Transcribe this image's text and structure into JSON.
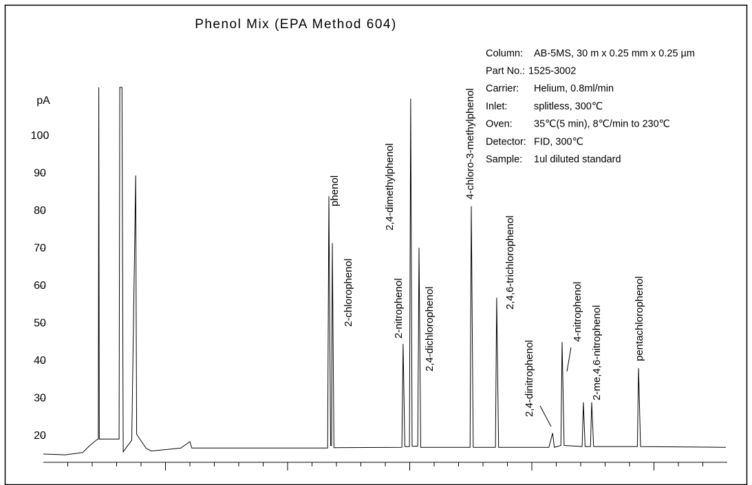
{
  "chart_data": {
    "type": "line",
    "title": "Phenol Mix (EPA Method 604)",
    "ylabel": "pA",
    "xlim": [
      0,
      28
    ],
    "ylim": [
      13,
      113
    ],
    "xticks": [
      1,
      2,
      3,
      4,
      5,
      6,
      7,
      8,
      9,
      10,
      11,
      12,
      13,
      14,
      15,
      16,
      17,
      18,
      19,
      20,
      21,
      22,
      23,
      24,
      25,
      26,
      27
    ],
    "xticks_major": [
      5,
      10,
      15,
      20,
      25
    ],
    "yticks": [
      20,
      30,
      40,
      50,
      60,
      70,
      80,
      90,
      100
    ],
    "x": [
      0.0,
      0.9,
      1.61,
      1.89,
      2.17,
      2.25,
      2.27,
      2.29,
      3.1,
      3.13,
      3.22,
      3.27,
      3.62,
      3.78,
      3.82,
      3.92,
      4.2,
      4.42,
      5.63,
      6.0,
      6.08,
      11.64,
      11.69,
      11.76,
      11.8,
      11.83,
      11.9,
      14.68,
      14.73,
      14.8,
      14.99,
      15.04,
      15.1,
      15.33,
      15.38,
      15.45,
      17.47,
      17.52,
      17.6,
      18.51,
      18.56,
      18.64,
      20.7,
      20.85,
      20.92,
      21.19,
      21.24,
      21.32,
      22.06,
      22.11,
      22.18,
      22.4,
      22.45,
      22.53,
      24.32,
      24.37,
      24.45,
      27.94
    ],
    "series": [
      {
        "color": "#000000",
        "values": [
          15.2,
          15.0,
          15.6,
          17.4,
          18.9,
          19.2,
          113,
          19.2,
          19.2,
          113,
          113,
          15.8,
          18.9,
          89.5,
          20.5,
          19.5,
          16.8,
          16.0,
          16.8,
          18.5,
          16.8,
          16.8,
          84,
          17.5,
          17.5,
          71.5,
          16.9,
          17.0,
          44.6,
          17.2,
          17.2,
          110,
          17.3,
          17.3,
          70.2,
          17.0,
          17.0,
          81.3,
          17.0,
          17.0,
          56.9,
          17.0,
          17.0,
          20.8,
          17.0,
          17.5,
          45.1,
          17.5,
          17.2,
          29.0,
          17.2,
          17.2,
          29.0,
          17.2,
          17.2,
          38.1,
          17.2,
          17.0
        ]
      }
    ],
    "annotations": [
      "phenol",
      "2-chlorophenol",
      "2,4-dimethylphenol",
      "2-nitrophenol",
      "2,4-dichlorophenol",
      "4-chloro-3-methylphenol",
      "2,4,6-trichlorophenol",
      "2,4-dinitrophenol",
      "4-nitrophenol",
      "2-me,4,6-nitrophenol",
      "pentachlorophenol"
    ],
    "info": [
      {
        "label": "Column:",
        "value": "AB-5MS, 30 m x 0.25 mm x 0.25 µm"
      },
      {
        "label": "Part No.:",
        "value": "1525-3002"
      },
      {
        "label": "Carrier:",
        "value": "Helium, 0.8ml/min"
      },
      {
        "label": "Inlet:",
        "value": "splitless, 300℃"
      },
      {
        "label": "Oven:",
        "value": "35℃(5 min), 8℃/min to 230℃"
      },
      {
        "label": "Detector:",
        "value": "FID, 300℃"
      },
      {
        "label": "Sample:",
        "value": "1ul diluted standard"
      }
    ]
  }
}
